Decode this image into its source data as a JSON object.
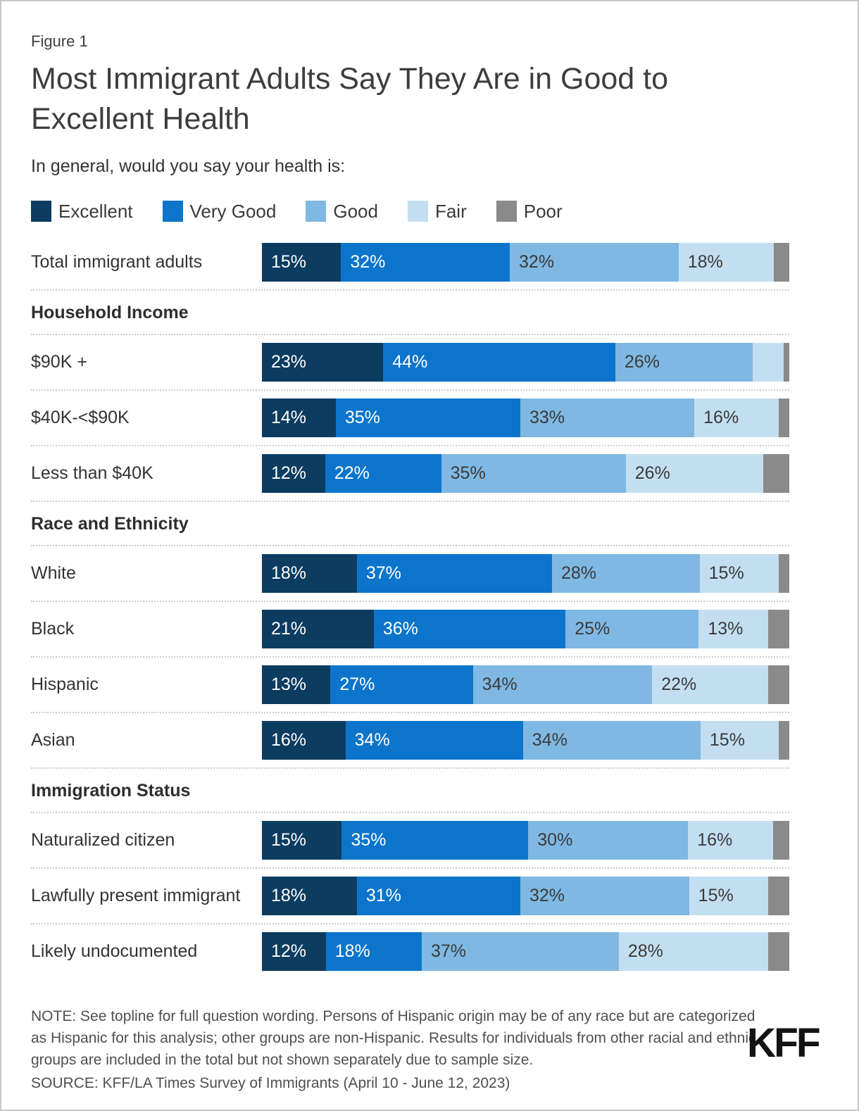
{
  "figure_label": "Figure 1",
  "title": "Most Immigrant Adults Say They Are in Good to Excellent Health",
  "subtitle": "In general, would you say your health is:",
  "colors": {
    "excellent": "#0C3C60",
    "very_good": "#0C75CB",
    "good": "#7FB8E2",
    "fair": "#C4DEF1",
    "poor": "#8A8A8A"
  },
  "legend": [
    {
      "label": "Excellent",
      "color_key": "excellent"
    },
    {
      "label": "Very Good",
      "color_key": "very_good"
    },
    {
      "label": "Good",
      "color_key": "good"
    },
    {
      "label": "Fair",
      "color_key": "fair"
    },
    {
      "label": "Poor",
      "color_key": "poor"
    }
  ],
  "chart_data": {
    "type": "bar",
    "stacked": true,
    "orientation": "horizontal",
    "title": "Most Immigrant Adults Say They Are in Good to Excellent Health",
    "series_names": [
      "Excellent",
      "Very Good",
      "Good",
      "Fair",
      "Poor"
    ],
    "xlim": [
      0,
      100
    ],
    "note": "Segment labels hidden for values under 10%",
    "rows": [
      {
        "label": "Total immigrant adults",
        "values": [
          15,
          32,
          32,
          18,
          3
        ],
        "labels": [
          "15%",
          "32%",
          "32%",
          "18%",
          ""
        ]
      },
      {
        "section": "Household Income"
      },
      {
        "label": "$90K +",
        "values": [
          23,
          44,
          26,
          6,
          1
        ],
        "labels": [
          "23%",
          "44%",
          "26%",
          "",
          ""
        ]
      },
      {
        "label": "$40K-<$90K",
        "values": [
          14,
          35,
          33,
          16,
          2
        ],
        "labels": [
          "14%",
          "35%",
          "33%",
          "16%",
          ""
        ]
      },
      {
        "label": "Less than $40K",
        "values": [
          12,
          22,
          35,
          26,
          5
        ],
        "labels": [
          "12%",
          "22%",
          "35%",
          "26%",
          ""
        ]
      },
      {
        "section": "Race and Ethnicity"
      },
      {
        "label": "White",
        "values": [
          18,
          37,
          28,
          15,
          2
        ],
        "labels": [
          "18%",
          "37%",
          "28%",
          "15%",
          ""
        ]
      },
      {
        "label": "Black",
        "values": [
          21,
          36,
          25,
          13,
          4
        ],
        "labels": [
          "21%",
          "36%",
          "25%",
          "13%",
          ""
        ]
      },
      {
        "label": "Hispanic",
        "values": [
          13,
          27,
          34,
          22,
          4
        ],
        "labels": [
          "13%",
          "27%",
          "34%",
          "22%",
          ""
        ]
      },
      {
        "label": "Asian",
        "values": [
          16,
          34,
          34,
          15,
          2
        ],
        "labels": [
          "16%",
          "34%",
          "34%",
          "15%",
          ""
        ]
      },
      {
        "section": "Immigration Status"
      },
      {
        "label": "Naturalized citizen",
        "values": [
          15,
          35,
          30,
          16,
          3
        ],
        "labels": [
          "15%",
          "35%",
          "30%",
          "16%",
          ""
        ]
      },
      {
        "label": "Lawfully present immigrant",
        "values": [
          18,
          31,
          32,
          15,
          4
        ],
        "labels": [
          "18%",
          "31%",
          "32%",
          "15%",
          ""
        ]
      },
      {
        "label": "Likely undocumented",
        "values": [
          12,
          18,
          37,
          28,
          4
        ],
        "labels": [
          "12%",
          "18%",
          "37%",
          "28%",
          ""
        ]
      }
    ]
  },
  "note": "NOTE: See topline for full question wording. Persons of Hispanic origin may be of any race but are categorized as Hispanic for this analysis; other groups are non-Hispanic. Results for individuals from other racial and ethnic groups are included in the total but not shown separately due to sample size.",
  "source": "SOURCE: KFF/LA Times Survey of Immigrants (April 10 - June 12, 2023)",
  "logo": "KFF"
}
